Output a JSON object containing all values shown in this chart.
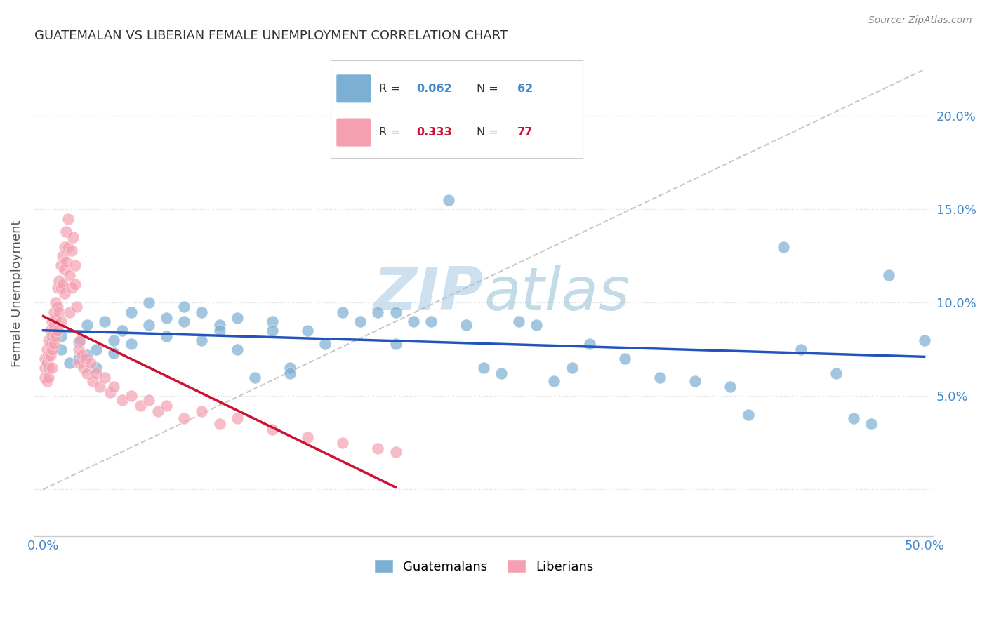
{
  "title": "GUATEMALAN VS LIBERIAN FEMALE UNEMPLOYMENT CORRELATION CHART",
  "source": "Source: ZipAtlas.com",
  "ylabel": "Female Unemployment",
  "yticks": [
    0.0,
    0.05,
    0.1,
    0.15,
    0.2
  ],
  "ytick_labels_right": [
    "",
    "5.0%",
    "10.0%",
    "15.0%",
    "20.0%"
  ],
  "xlim": [
    -0.005,
    0.505
  ],
  "ylim": [
    -0.025,
    0.235
  ],
  "blue_color": "#7BAFD4",
  "pink_color": "#F4A0B0",
  "blue_line_color": "#2255BB",
  "pink_line_color": "#CC1133",
  "ref_line_color": "#BBBBBB",
  "watermark_color": "#DDEEFF",
  "background_color": "#FFFFFF",
  "title_color": "#333333",
  "axis_label_color": "#555555",
  "tick_color": "#4488CC",
  "legend_r_blue": "#4488CC",
  "legend_r_pink": "#CC1133",
  "legend_n_color": "#CC1133",
  "grid_color": "#DDDDDD",
  "guats_x": [
    0.01,
    0.01,
    0.015,
    0.02,
    0.02,
    0.025,
    0.025,
    0.03,
    0.03,
    0.035,
    0.04,
    0.04,
    0.045,
    0.05,
    0.05,
    0.06,
    0.06,
    0.07,
    0.07,
    0.08,
    0.08,
    0.09,
    0.09,
    0.1,
    0.1,
    0.11,
    0.11,
    0.12,
    0.13,
    0.13,
    0.14,
    0.14,
    0.15,
    0.16,
    0.17,
    0.18,
    0.19,
    0.2,
    0.2,
    0.21,
    0.22,
    0.23,
    0.24,
    0.25,
    0.26,
    0.27,
    0.28,
    0.29,
    0.3,
    0.31,
    0.33,
    0.35,
    0.37,
    0.39,
    0.4,
    0.42,
    0.43,
    0.45,
    0.46,
    0.47,
    0.48,
    0.5
  ],
  "guats_y": [
    0.075,
    0.082,
    0.068,
    0.079,
    0.07,
    0.088,
    0.072,
    0.075,
    0.065,
    0.09,
    0.08,
    0.073,
    0.085,
    0.095,
    0.078,
    0.1,
    0.088,
    0.092,
    0.082,
    0.09,
    0.098,
    0.08,
    0.095,
    0.088,
    0.085,
    0.092,
    0.075,
    0.06,
    0.09,
    0.085,
    0.065,
    0.062,
    0.085,
    0.078,
    0.095,
    0.09,
    0.095,
    0.095,
    0.078,
    0.09,
    0.09,
    0.155,
    0.088,
    0.065,
    0.062,
    0.09,
    0.088,
    0.058,
    0.065,
    0.078,
    0.07,
    0.06,
    0.058,
    0.055,
    0.04,
    0.13,
    0.075,
    0.062,
    0.038,
    0.035,
    0.115,
    0.08
  ],
  "libs_x": [
    0.001,
    0.001,
    0.001,
    0.002,
    0.002,
    0.002,
    0.003,
    0.003,
    0.003,
    0.003,
    0.004,
    0.004,
    0.004,
    0.005,
    0.005,
    0.005,
    0.005,
    0.006,
    0.006,
    0.006,
    0.007,
    0.007,
    0.007,
    0.008,
    0.008,
    0.008,
    0.009,
    0.009,
    0.01,
    0.01,
    0.01,
    0.011,
    0.011,
    0.012,
    0.012,
    0.012,
    0.013,
    0.013,
    0.014,
    0.014,
    0.015,
    0.015,
    0.016,
    0.016,
    0.017,
    0.018,
    0.018,
    0.019,
    0.02,
    0.02,
    0.021,
    0.022,
    0.023,
    0.024,
    0.025,
    0.027,
    0.028,
    0.03,
    0.032,
    0.035,
    0.038,
    0.04,
    0.045,
    0.05,
    0.055,
    0.06,
    0.065,
    0.07,
    0.08,
    0.09,
    0.1,
    0.11,
    0.13,
    0.15,
    0.17,
    0.19,
    0.2
  ],
  "libs_y": [
    0.07,
    0.065,
    0.06,
    0.075,
    0.068,
    0.058,
    0.08,
    0.072,
    0.065,
    0.06,
    0.085,
    0.078,
    0.072,
    0.09,
    0.082,
    0.075,
    0.065,
    0.095,
    0.088,
    0.078,
    0.1,
    0.092,
    0.082,
    0.108,
    0.098,
    0.085,
    0.112,
    0.095,
    0.12,
    0.108,
    0.09,
    0.125,
    0.11,
    0.13,
    0.118,
    0.105,
    0.138,
    0.122,
    0.145,
    0.13,
    0.115,
    0.095,
    0.128,
    0.108,
    0.135,
    0.12,
    0.11,
    0.098,
    0.075,
    0.068,
    0.08,
    0.072,
    0.065,
    0.07,
    0.062,
    0.068,
    0.058,
    0.062,
    0.055,
    0.06,
    0.052,
    0.055,
    0.048,
    0.05,
    0.045,
    0.048,
    0.042,
    0.045,
    0.038,
    0.042,
    0.035,
    0.038,
    0.032,
    0.028,
    0.025,
    0.022,
    0.02
  ],
  "xtick_positions": [
    0.0,
    0.1,
    0.2,
    0.3,
    0.4,
    0.5
  ],
  "xtick_labels": [
    "0.0%",
    "",
    "",
    "",
    "",
    "50.0%"
  ]
}
